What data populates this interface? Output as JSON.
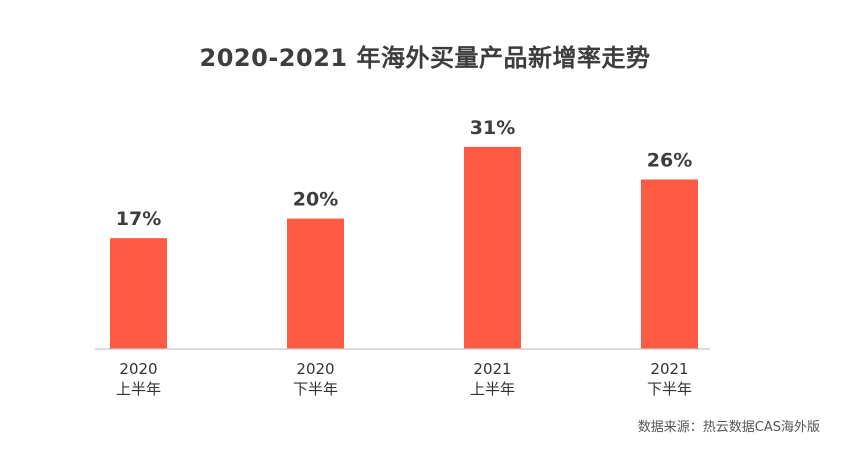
{
  "title": "2020-2021 年海外买量产品新增率走势",
  "source": "数据来源：热云数据CAS海外版",
  "chart_data": {
    "type": "bar",
    "title": "2020-2021 年海外买量产品新增率走势",
    "categories": [
      {
        "year": "2020",
        "half": "上半年"
      },
      {
        "year": "2020",
        "half": "下半年"
      },
      {
        "year": "2021",
        "half": "上半年"
      },
      {
        "year": "2021",
        "half": "下半年"
      }
    ],
    "values": [
      17,
      20,
      31,
      26
    ],
    "value_labels": [
      "17%",
      "20%",
      "31%",
      "26%"
    ],
    "unit": "%",
    "ylim": [
      0,
      35
    ],
    "grid": false,
    "bar_color": "#ff5a43",
    "axis_color": "#c8c8c8"
  }
}
